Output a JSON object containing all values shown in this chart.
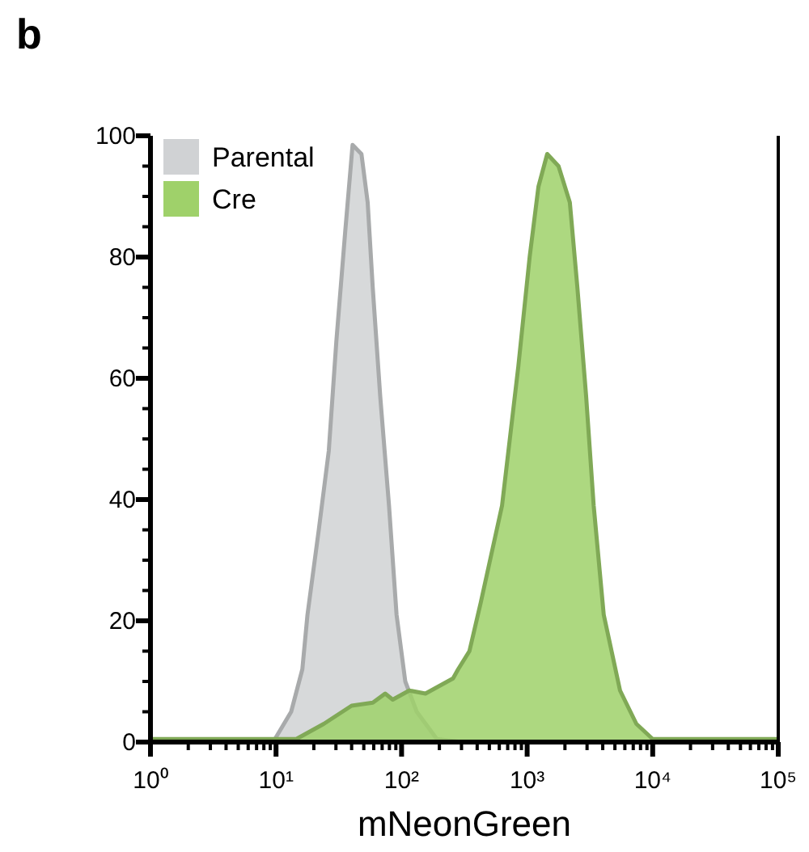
{
  "chart_data": {
    "type": "area",
    "xlabel": "mNeonGreen",
    "annotations": [
      "b"
    ],
    "log": "x",
    "legend": "top left",
    "xlim": [
      1,
      100000
    ],
    "ylim": [
      0,
      100
    ],
    "xticks": [
      {
        "value": 1,
        "label": "10⁰"
      },
      {
        "value": 2,
        "label": null
      },
      {
        "value": 3,
        "label": null
      },
      {
        "value": 4,
        "label": null
      },
      {
        "value": 5,
        "label": null
      },
      {
        "value": 6,
        "label": null
      },
      {
        "value": 7,
        "label": null
      },
      {
        "value": 8,
        "label": null
      },
      {
        "value": 9,
        "label": null
      },
      {
        "value": 10,
        "label": "10¹"
      },
      {
        "value": 20,
        "label": null
      },
      {
        "value": 30,
        "label": null
      },
      {
        "value": 40,
        "label": null
      },
      {
        "value": 50,
        "label": null
      },
      {
        "value": 60,
        "label": null
      },
      {
        "value": 70,
        "label": null
      },
      {
        "value": 80,
        "label": null
      },
      {
        "value": 90,
        "label": null
      },
      {
        "value": 100,
        "label": "10²"
      },
      {
        "value": 200,
        "label": null
      },
      {
        "value": 300,
        "label": null
      },
      {
        "value": 400,
        "label": null
      },
      {
        "value": 500,
        "label": null
      },
      {
        "value": 600,
        "label": null
      },
      {
        "value": 700,
        "label": null
      },
      {
        "value": 800,
        "label": null
      },
      {
        "value": 900,
        "label": null
      },
      {
        "value": 1000,
        "label": "10³"
      },
      {
        "value": 2000,
        "label": null
      },
      {
        "value": 3000,
        "label": null
      },
      {
        "value": 4000,
        "label": null
      },
      {
        "value": 5000,
        "label": null
      },
      {
        "value": 6000,
        "label": null
      },
      {
        "value": 7000,
        "label": null
      },
      {
        "value": 8000,
        "label": null
      },
      {
        "value": 9000,
        "label": null
      },
      {
        "value": 10000,
        "label": "10⁴"
      },
      {
        "value": 20000,
        "label": null
      },
      {
        "value": 30000,
        "label": null
      },
      {
        "value": 40000,
        "label": null
      },
      {
        "value": 50000,
        "label": null
      },
      {
        "value": 60000,
        "label": null
      },
      {
        "value": 70000,
        "label": null
      },
      {
        "value": 80000,
        "label": null
      },
      {
        "value": 90000,
        "label": null
      },
      {
        "value": 100000,
        "label": "10⁵"
      }
    ],
    "yticks": [
      0,
      {
        "value": 5,
        "label": null
      },
      {
        "value": 10,
        "label": null
      },
      {
        "value": 15,
        "label": null
      },
      20,
      {
        "value": 25,
        "label": null
      },
      {
        "value": 30,
        "label": null
      },
      {
        "value": 35,
        "label": null
      },
      40,
      {
        "value": 45,
        "label": null
      },
      {
        "value": 50,
        "label": null
      },
      {
        "value": 55,
        "label": null
      },
      60,
      {
        "value": 65,
        "label": null
      },
      {
        "value": 70,
        "label": null
      },
      {
        "value": 75,
        "label": null
      },
      80,
      {
        "value": 85,
        "label": null
      },
      {
        "value": 90,
        "label": null
      },
      {
        "value": 95,
        "label": null
      },
      100
    ],
    "series": [
      {
        "name": "Parental",
        "color": "#d0d2d4",
        "x": [
          1,
          8,
          9.8,
          13.2,
          16.2,
          17.8,
          21.9,
          26.3,
          30.2,
          35.5,
          40.7,
          47.9,
          53.7,
          58.9,
          67.6,
          79.4,
          91.2,
          107,
          132,
          191,
          300,
          100000
        ],
        "values": [
          0,
          0,
          0.5,
          5,
          12,
          21,
          35,
          48,
          66,
          84,
          98.5,
          97,
          89,
          75,
          57,
          39,
          21,
          10,
          5,
          0.5,
          0,
          0
        ]
      },
      {
        "name": "Cre",
        "color": "#9fd16a",
        "x": [
          1,
          14.5,
          24,
          40,
          59,
          74,
          85,
          115,
          155,
          257,
          282,
          347,
          427,
          631,
          851,
          1047,
          1230,
          1445,
          1778,
          2188,
          2512,
          2951,
          3388,
          4074,
          5495,
          7413,
          10000,
          100000
        ],
        "values": [
          0.5,
          0.5,
          3,
          6,
          6.5,
          8,
          7,
          8.5,
          8,
          10.5,
          12,
          15,
          23,
          39,
          62,
          80,
          91.6,
          97,
          95,
          89,
          75,
          57,
          39,
          21,
          8.5,
          3,
          0.5,
          0.5
        ]
      }
    ]
  }
}
